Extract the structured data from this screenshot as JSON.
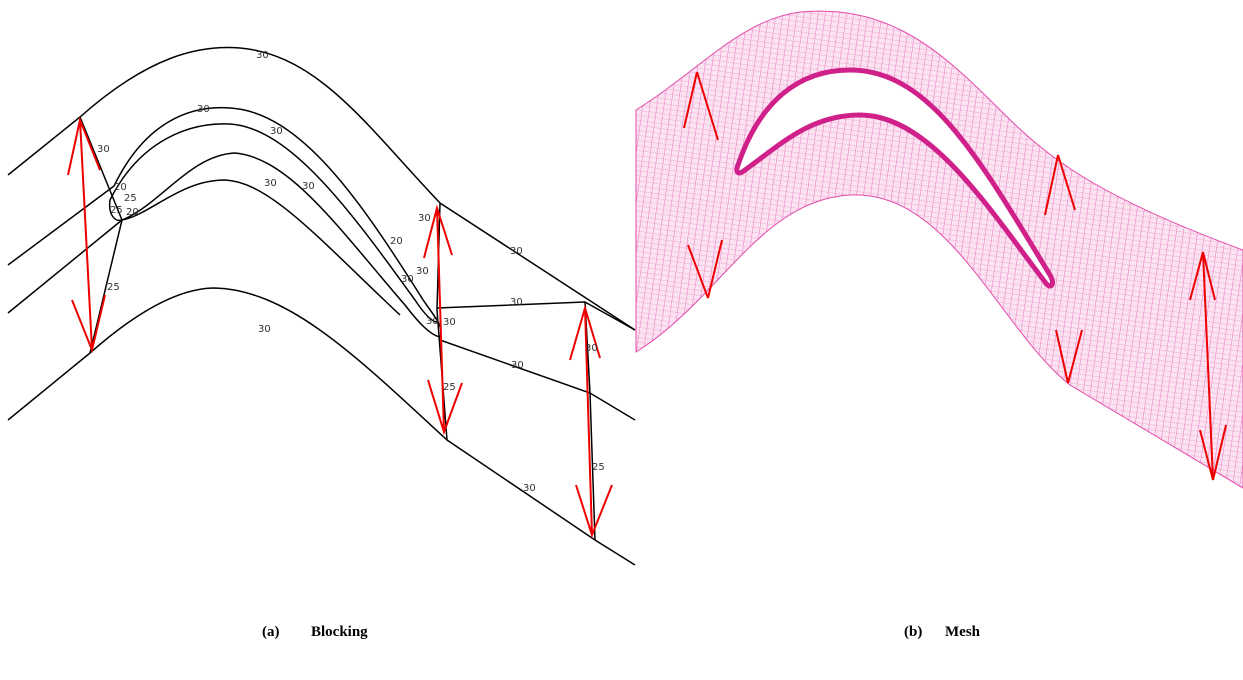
{
  "panels": [
    {
      "caption_label": "(a)",
      "caption_title": "Blocking",
      "edge_labels": [
        "30",
        "30",
        "30",
        "30",
        "30",
        "30",
        "20",
        "25",
        "25",
        "20",
        "25",
        "30",
        "30",
        "30",
        "20",
        "30",
        "30",
        "30",
        "30",
        "30",
        "30",
        "25",
        "30",
        "25",
        "30"
      ]
    },
    {
      "caption_label": "(b)",
      "caption_title": "Mesh"
    }
  ]
}
